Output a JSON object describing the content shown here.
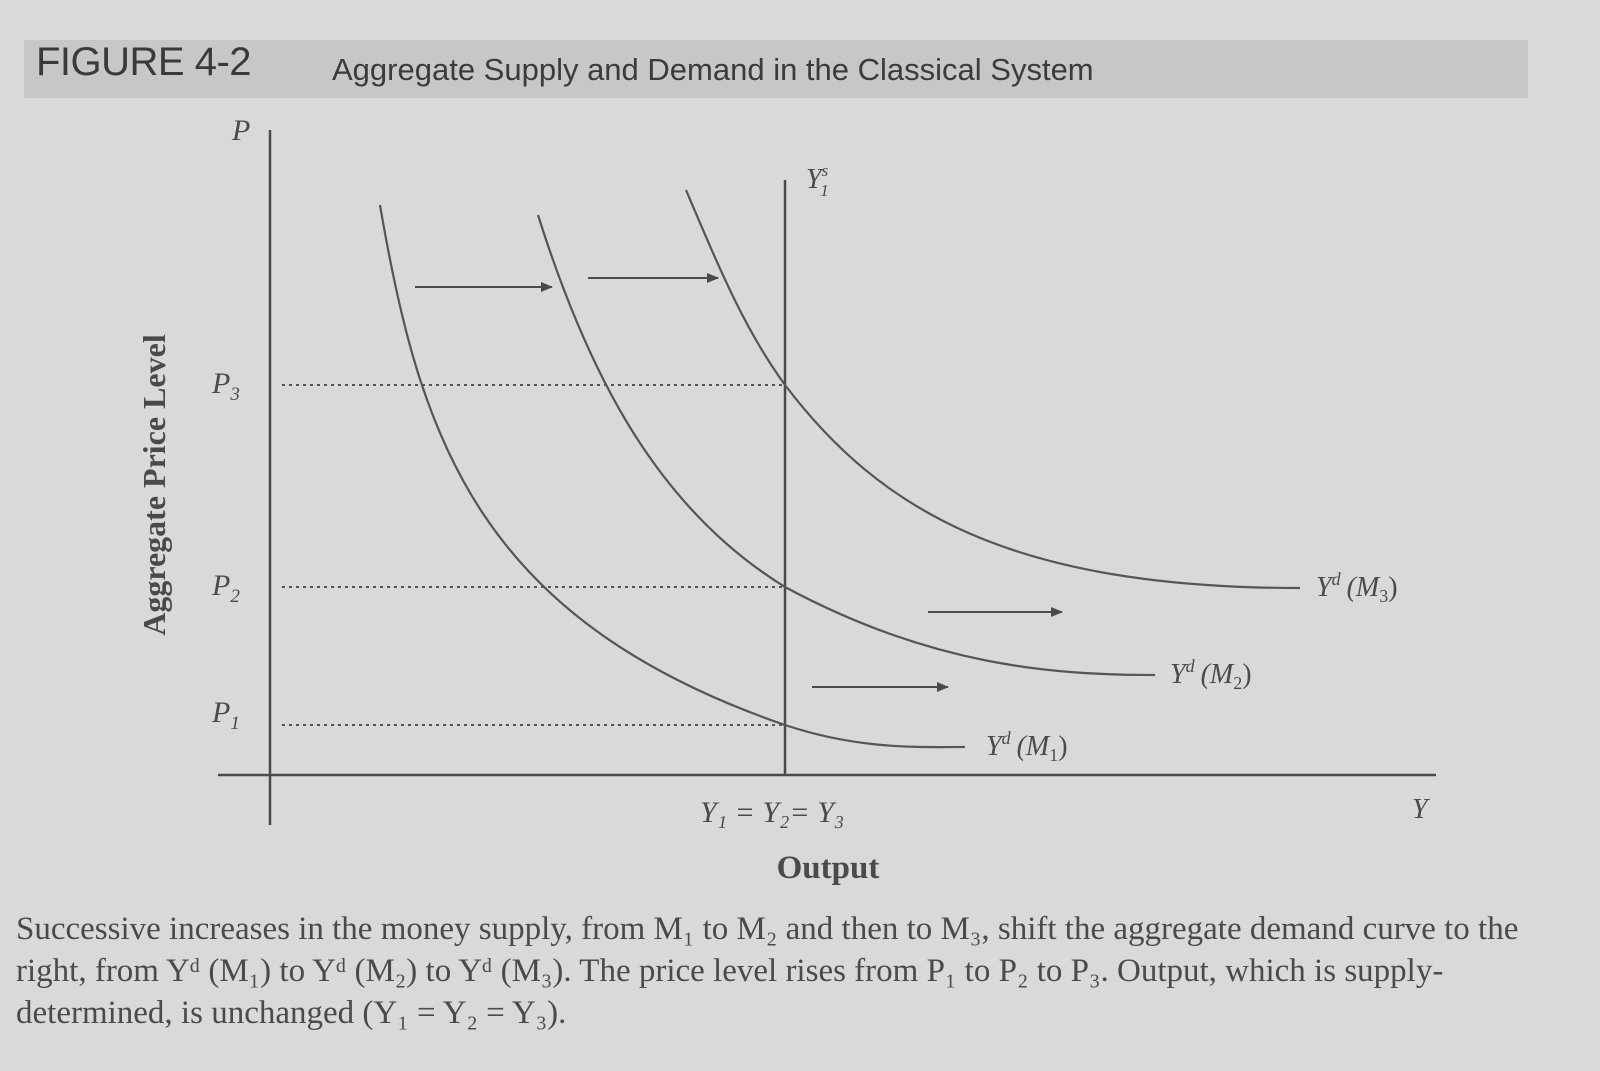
{
  "figure": {
    "label": "FIGURE 4-2",
    "title": "Aggregate Supply and Demand in the Classical System"
  },
  "chart_data": {
    "type": "line",
    "ylabel": "Aggregate Price Level",
    "xlabel": "Output",
    "y_axis_symbol": "P",
    "x_axis_symbol": "Y",
    "supply_label": "Y",
    "supply_label_super": "s",
    "supply_label_sub": "1",
    "equilibrium_output_label": "Y₁ = Y₂= Y₃",
    "price_levels": [
      {
        "label": "P",
        "sub": "1",
        "value": 1
      },
      {
        "label": "P",
        "sub": "2",
        "value": 2
      },
      {
        "label": "P",
        "sub": "3",
        "value": 3
      }
    ],
    "series": [
      {
        "name": "Yd (M1)",
        "label_main": "Y",
        "label_sup": "d",
        "label_arg": "(M",
        "label_sub": "1",
        "label_close": ")",
        "intersects_supply_at": "P1"
      },
      {
        "name": "Yd (M2)",
        "label_main": "Y",
        "label_sup": "d",
        "label_arg": "(M",
        "label_sub": "2",
        "label_close": ")",
        "intersects_supply_at": "P2"
      },
      {
        "name": "Yd (M3)",
        "label_main": "Y",
        "label_sup": "d",
        "label_arg": "(M",
        "label_sub": "3",
        "label_close": ")",
        "intersects_supply_at": "P3"
      }
    ],
    "annotations": [
      "rightward shift arrows between demand curves"
    ],
    "grid": false
  },
  "caption": {
    "text": "Successive increases in the money supply, from M₁ to M₂ and then to M₃, shift the aggregate demand curve to the right, from Yᵈ (M₁) to Yᵈ (M₂) to Yᵈ (M₃). The price level rises from P₁ to P₂ to P₃. Output, which is supply-determined, is unchanged (Y₁ = Y₂ = Y₃)."
  }
}
